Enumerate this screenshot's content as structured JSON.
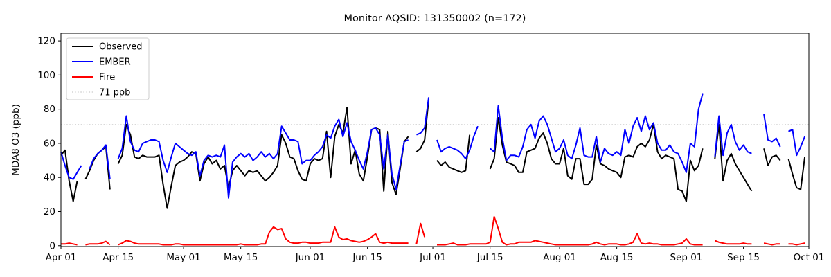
{
  "chart_data": {
    "type": "line",
    "title": "Monitor AQSID: 131350002 (n=172)",
    "ylabel": "MDA8 O3 (ppb)",
    "xlabel": "",
    "yticks": [
      0,
      20,
      40,
      60,
      80,
      100,
      120
    ],
    "ylim": [
      -0.5,
      124.5
    ],
    "x_total_days": 183,
    "x_unit": "day",
    "x_tick_labels": [
      "Apr 01",
      "Apr 15",
      "May 01",
      "May 15",
      "Jun 01",
      "Jun 15",
      "Jul 01",
      "Jul 15",
      "Aug 01",
      "Aug 15",
      "Sep 01",
      "Sep 15",
      "Oct 01"
    ],
    "x_tick_days": [
      0,
      14,
      30,
      44,
      61,
      75,
      91,
      105,
      122,
      136,
      153,
      167,
      183
    ],
    "grid": false,
    "legend_position": "upper left",
    "threshold": {
      "label": "71 ppb",
      "value": 71,
      "color": "#d3d3d3",
      "style": "dotted"
    },
    "series": [
      {
        "name": "Observed",
        "color": "#000000",
        "style": "solid",
        "values": [
          53,
          56,
          38,
          26,
          38,
          null,
          39,
          44,
          50,
          54,
          56,
          58,
          33,
          null,
          48,
          53,
          71,
          65,
          52,
          51,
          53,
          52,
          52,
          52,
          53,
          36,
          22,
          35,
          47,
          49,
          50,
          52,
          55,
          54,
          38,
          48,
          52,
          48,
          50,
          45,
          47,
          34,
          44,
          47,
          44,
          41,
          44,
          43,
          44,
          41,
          38,
          40,
          43,
          47,
          65,
          60,
          52,
          51,
          44,
          39,
          38,
          48,
          51,
          50,
          51,
          67,
          40,
          64,
          71,
          66,
          81,
          48,
          56,
          42,
          38,
          52,
          68,
          69,
          68,
          32,
          67,
          37,
          30,
          45,
          61,
          64,
          null,
          55,
          57,
          62,
          86,
          null,
          50,
          47,
          49,
          46,
          45,
          44,
          43,
          44,
          65,
          null,
          null,
          null,
          null,
          45,
          51,
          75,
          59,
          49,
          48,
          47,
          43,
          43,
          55,
          56,
          57,
          63,
          66,
          60,
          51,
          48,
          48,
          57,
          41,
          39,
          51,
          51,
          36,
          36,
          39,
          59,
          48,
          47,
          45,
          44,
          43,
          40,
          52,
          53,
          52,
          58,
          60,
          58,
          62,
          71,
          55,
          51,
          53,
          52,
          51,
          33,
          32,
          26,
          50,
          44,
          47,
          57,
          null,
          null,
          51,
          71,
          38,
          50,
          54,
          48,
          44,
          40,
          36,
          32,
          null,
          null,
          57,
          47,
          52,
          53,
          50,
          null,
          51,
          42,
          34,
          33,
          52
        ]
      },
      {
        "name": "EMBER",
        "color": "#0000ff",
        "style": "solid",
        "values": [
          55,
          47,
          40,
          39,
          43,
          47,
          null,
          45,
          51,
          54,
          56,
          59,
          39,
          null,
          51,
          57,
          76,
          61,
          56,
          55,
          60,
          61,
          62,
          62,
          61,
          50,
          43,
          52,
          60,
          58,
          56,
          54,
          53,
          55,
          41,
          50,
          53,
          52,
          53,
          52,
          59,
          28,
          49,
          52,
          54,
          52,
          54,
          50,
          52,
          55,
          52,
          54,
          51,
          54,
          70,
          66,
          62,
          62,
          61,
          48,
          50,
          50,
          53,
          55,
          58,
          65,
          63,
          70,
          74,
          64,
          72,
          61,
          56,
          50,
          45,
          55,
          68,
          69,
          65,
          45,
          65,
          42,
          33,
          47,
          61,
          62,
          null,
          65,
          66,
          69,
          87,
          null,
          62,
          55,
          57,
          58,
          57,
          56,
          54,
          51,
          56,
          64,
          70,
          null,
          null,
          57,
          55,
          82,
          63,
          50,
          53,
          53,
          52,
          58,
          68,
          71,
          63,
          73,
          76,
          71,
          63,
          55,
          57,
          62,
          53,
          51,
          59,
          69,
          53,
          52,
          52,
          64,
          49,
          57,
          54,
          53,
          55,
          53,
          68,
          60,
          70,
          75,
          67,
          76,
          68,
          72,
          60,
          56,
          56,
          59,
          55,
          54,
          49,
          43,
          60,
          58,
          80,
          89,
          null,
          null,
          52,
          76,
          53,
          66,
          71,
          61,
          56,
          59,
          55,
          54,
          null,
          null,
          77,
          62,
          61,
          63,
          58,
          null,
          67,
          68,
          53,
          58,
          64
        ]
      },
      {
        "name": "Fire",
        "color": "#ff0000",
        "style": "solid",
        "values": [
          1,
          1,
          1.5,
          1,
          0.5,
          null,
          0.5,
          1,
          1,
          1,
          1.5,
          2.5,
          0.5,
          null,
          0.5,
          1.5,
          3,
          2.5,
          1.5,
          1,
          1,
          1,
          1,
          1,
          1,
          0.5,
          0.5,
          0.5,
          1,
          1,
          0.5,
          0.5,
          0.5,
          0.5,
          0.5,
          0.5,
          0.5,
          0.5,
          0.5,
          0.5,
          0.5,
          0.5,
          0.5,
          0.5,
          1,
          0.5,
          0.5,
          0.5,
          0.5,
          1,
          1,
          8,
          11,
          9.5,
          10,
          4,
          2,
          1.5,
          1.5,
          2,
          2,
          1.5,
          1.5,
          1.5,
          2,
          2,
          2,
          11,
          5,
          3.5,
          4,
          3,
          2.5,
          2,
          2.5,
          3.5,
          5,
          7,
          2,
          1.5,
          2,
          1.5,
          1.5,
          1.5,
          1.5,
          1.5,
          null,
          1,
          13,
          5,
          null,
          null,
          0.5,
          0.5,
          0.5,
          1,
          1.5,
          0.5,
          0.5,
          0.5,
          1,
          1,
          1,
          1,
          1,
          2,
          17,
          10,
          2,
          0.5,
          1,
          1,
          2,
          2,
          2,
          2,
          3,
          2.5,
          2,
          1.5,
          1,
          0.5,
          0.5,
          0.5,
          0.5,
          0.5,
          0.5,
          0.5,
          0.5,
          0.5,
          1,
          2,
          1,
          0.5,
          1,
          1,
          1,
          0.5,
          0.5,
          1,
          2,
          7,
          1.5,
          1,
          1.5,
          1,
          1,
          0.5,
          0.5,
          0.5,
          0.5,
          1,
          1.5,
          4,
          1,
          0.5,
          0.5,
          0.5,
          null,
          null,
          3,
          2,
          1.5,
          1,
          1,
          1,
          1,
          1.5,
          1,
          1,
          null,
          null,
          1.5,
          1,
          0.5,
          1,
          1,
          null,
          1,
          1,
          0.5,
          1,
          1.5
        ]
      }
    ],
    "legend_entries": [
      "Observed",
      "EMBER",
      "Fire",
      "71 ppb"
    ]
  }
}
